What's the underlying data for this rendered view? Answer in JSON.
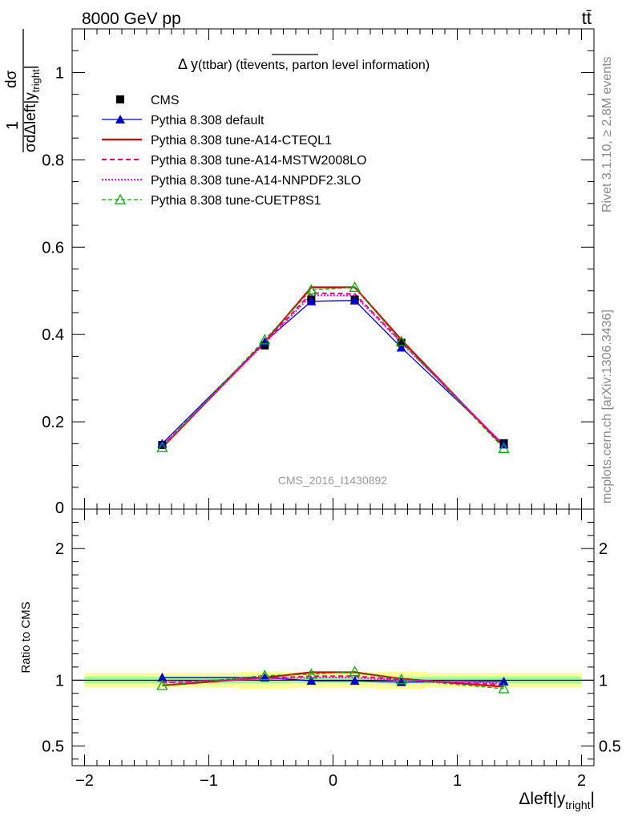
{
  "header": {
    "left": "8000 GeV pp",
    "right": "tt̄"
  },
  "side": {
    "rivet": "Rivet 3.1.10, ≥ 2.8M events",
    "source": "mcplots.cern.ch [arXiv:1306.3436]"
  },
  "watermark": "CMS_2016_I1430892",
  "title": {
    "prefix": "Δ y",
    "mid": "(ttbar) (",
    "over": "tt̄events,",
    "suffix": " parton level information)"
  },
  "colors": {
    "cms": "#000000",
    "default": "#0000cc",
    "cteql1": "#dd0000",
    "mstw": "#e0006e",
    "nnpdf": "#ff00ff",
    "cuetp8s1": "#00aa00",
    "band_inner": "#99ff99",
    "band_outer": "#ffff99"
  },
  "chart_data": {
    "type": "line",
    "x": [
      -1.375,
      -0.55,
      -0.175,
      0.175,
      0.55,
      1.375
    ],
    "bin_edges": [
      -2.0,
      -0.75,
      -0.35,
      0.0,
      0.35,
      0.75,
      2.0
    ],
    "xlim": [
      -2.1,
      2.1
    ],
    "xticks": [
      -2,
      -1,
      0,
      1,
      2
    ],
    "xtick_labels": [
      "−2",
      "−1",
      "0",
      "1",
      "2"
    ],
    "xlabel": {
      "main": "Δleft|y",
      "sub": "tright",
      "end": "|"
    },
    "main": {
      "ylim": [
        0,
        1.1
      ],
      "yticks": [
        0.2,
        0.4,
        0.6,
        0.8,
        1.0
      ],
      "ytick_labels": [
        "0.2",
        "0.4",
        "0.6",
        "0.8",
        "1"
      ],
      "ylabel": {
        "num": "1",
        "frac_num": "dσ",
        "frac_den": "σ",
        "den_main": "dΔleft|y",
        "den_sub": "tright",
        "den_end": "|"
      }
    },
    "ratio": {
      "ylim": [
        0.35,
        2.3
      ],
      "yticks": [
        0.5,
        1,
        2
      ],
      "ytick_labels": [
        "0.5",
        "1",
        "2"
      ],
      "ylabel": "Ratio to CMS",
      "band_inner": [
        0.025,
        0.025,
        0.02,
        0.02,
        0.025,
        0.025
      ],
      "band_outer": [
        0.055,
        0.065,
        0.06,
        0.06,
        0.065,
        0.055
      ]
    },
    "series": [
      {
        "key": "cms",
        "name": "CMS",
        "values": [
          0.147,
          0.375,
          0.48,
          0.48,
          0.381,
          0.151
        ],
        "ratio": [
          1,
          1,
          1,
          1,
          1,
          1
        ]
      },
      {
        "key": "default",
        "name": "Pythia 8.308 default",
        "values": [
          0.15,
          0.383,
          0.476,
          0.478,
          0.37,
          0.148
        ],
        "ratio": [
          1.02,
          1.02,
          0.995,
          0.995,
          0.985,
          0.99
        ]
      },
      {
        "key": "cteql1",
        "name": "Pythia 8.308 tune-A14-CTEQL1",
        "values": [
          0.141,
          0.383,
          0.508,
          0.508,
          0.388,
          0.143
        ],
        "ratio": [
          0.96,
          1.02,
          1.06,
          1.06,
          1.01,
          0.95
        ]
      },
      {
        "key": "mstw",
        "name": "Pythia 8.308 tune-A14-MSTW2008LO",
        "values": [
          0.144,
          0.382,
          0.495,
          0.493,
          0.383,
          0.146
        ],
        "ratio": [
          0.98,
          1.015,
          1.03,
          1.03,
          1.005,
          0.965
        ]
      },
      {
        "key": "nnpdf",
        "name": "Pythia 8.308 tune-A14-NNPDF2.3LO",
        "values": [
          0.145,
          0.38,
          0.49,
          0.489,
          0.381,
          0.147
        ],
        "ratio": [
          0.985,
          1.01,
          1.02,
          1.02,
          1.0,
          0.975
        ]
      },
      {
        "key": "cuetp8s1",
        "name": "Pythia 8.308 tune-CUETP8S1",
        "values": [
          0.141,
          0.388,
          0.502,
          0.508,
          0.384,
          0.139
        ],
        "ratio": [
          0.96,
          1.035,
          1.045,
          1.065,
          1.005,
          0.935
        ]
      }
    ]
  }
}
